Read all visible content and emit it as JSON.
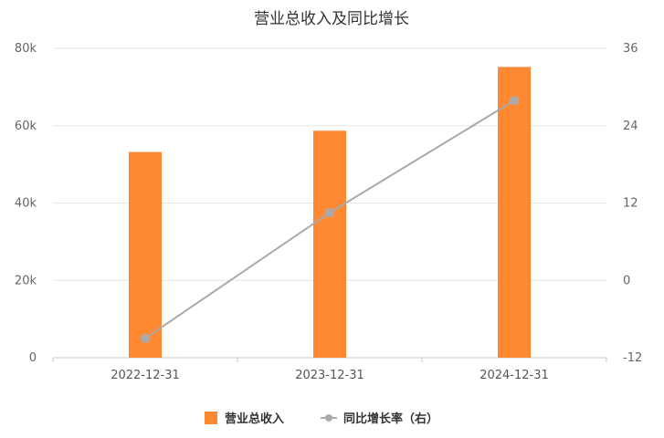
{
  "chart_data": {
    "type": "bar+line",
    "title": "营业总收入及同比增长",
    "categories": [
      "2022-12-31",
      "2023-12-31",
      "2024-12-31"
    ],
    "series": [
      {
        "name": "营业总收入",
        "type": "bar",
        "axis": "left",
        "values": [
          53200,
          58700,
          75200
        ],
        "color": "#FF8833"
      },
      {
        "name": "同比增长率（右）",
        "type": "line",
        "axis": "right",
        "values": [
          -9.0,
          10.5,
          27.9
        ],
        "color": "#AAAAAA"
      }
    ],
    "y_left": {
      "min": 0,
      "max": 80000,
      "ticks": [
        0,
        20000,
        40000,
        60000,
        80000
      ],
      "tick_labels": [
        "0",
        "20k",
        "40k",
        "60k",
        "80k"
      ]
    },
    "y_right": {
      "min": -12,
      "max": 36,
      "ticks": [
        -12,
        0,
        12,
        24,
        36
      ],
      "tick_labels": [
        "-12",
        "0",
        "12",
        "24",
        "36"
      ]
    },
    "grid": true,
    "legend_position": "bottom-center"
  }
}
